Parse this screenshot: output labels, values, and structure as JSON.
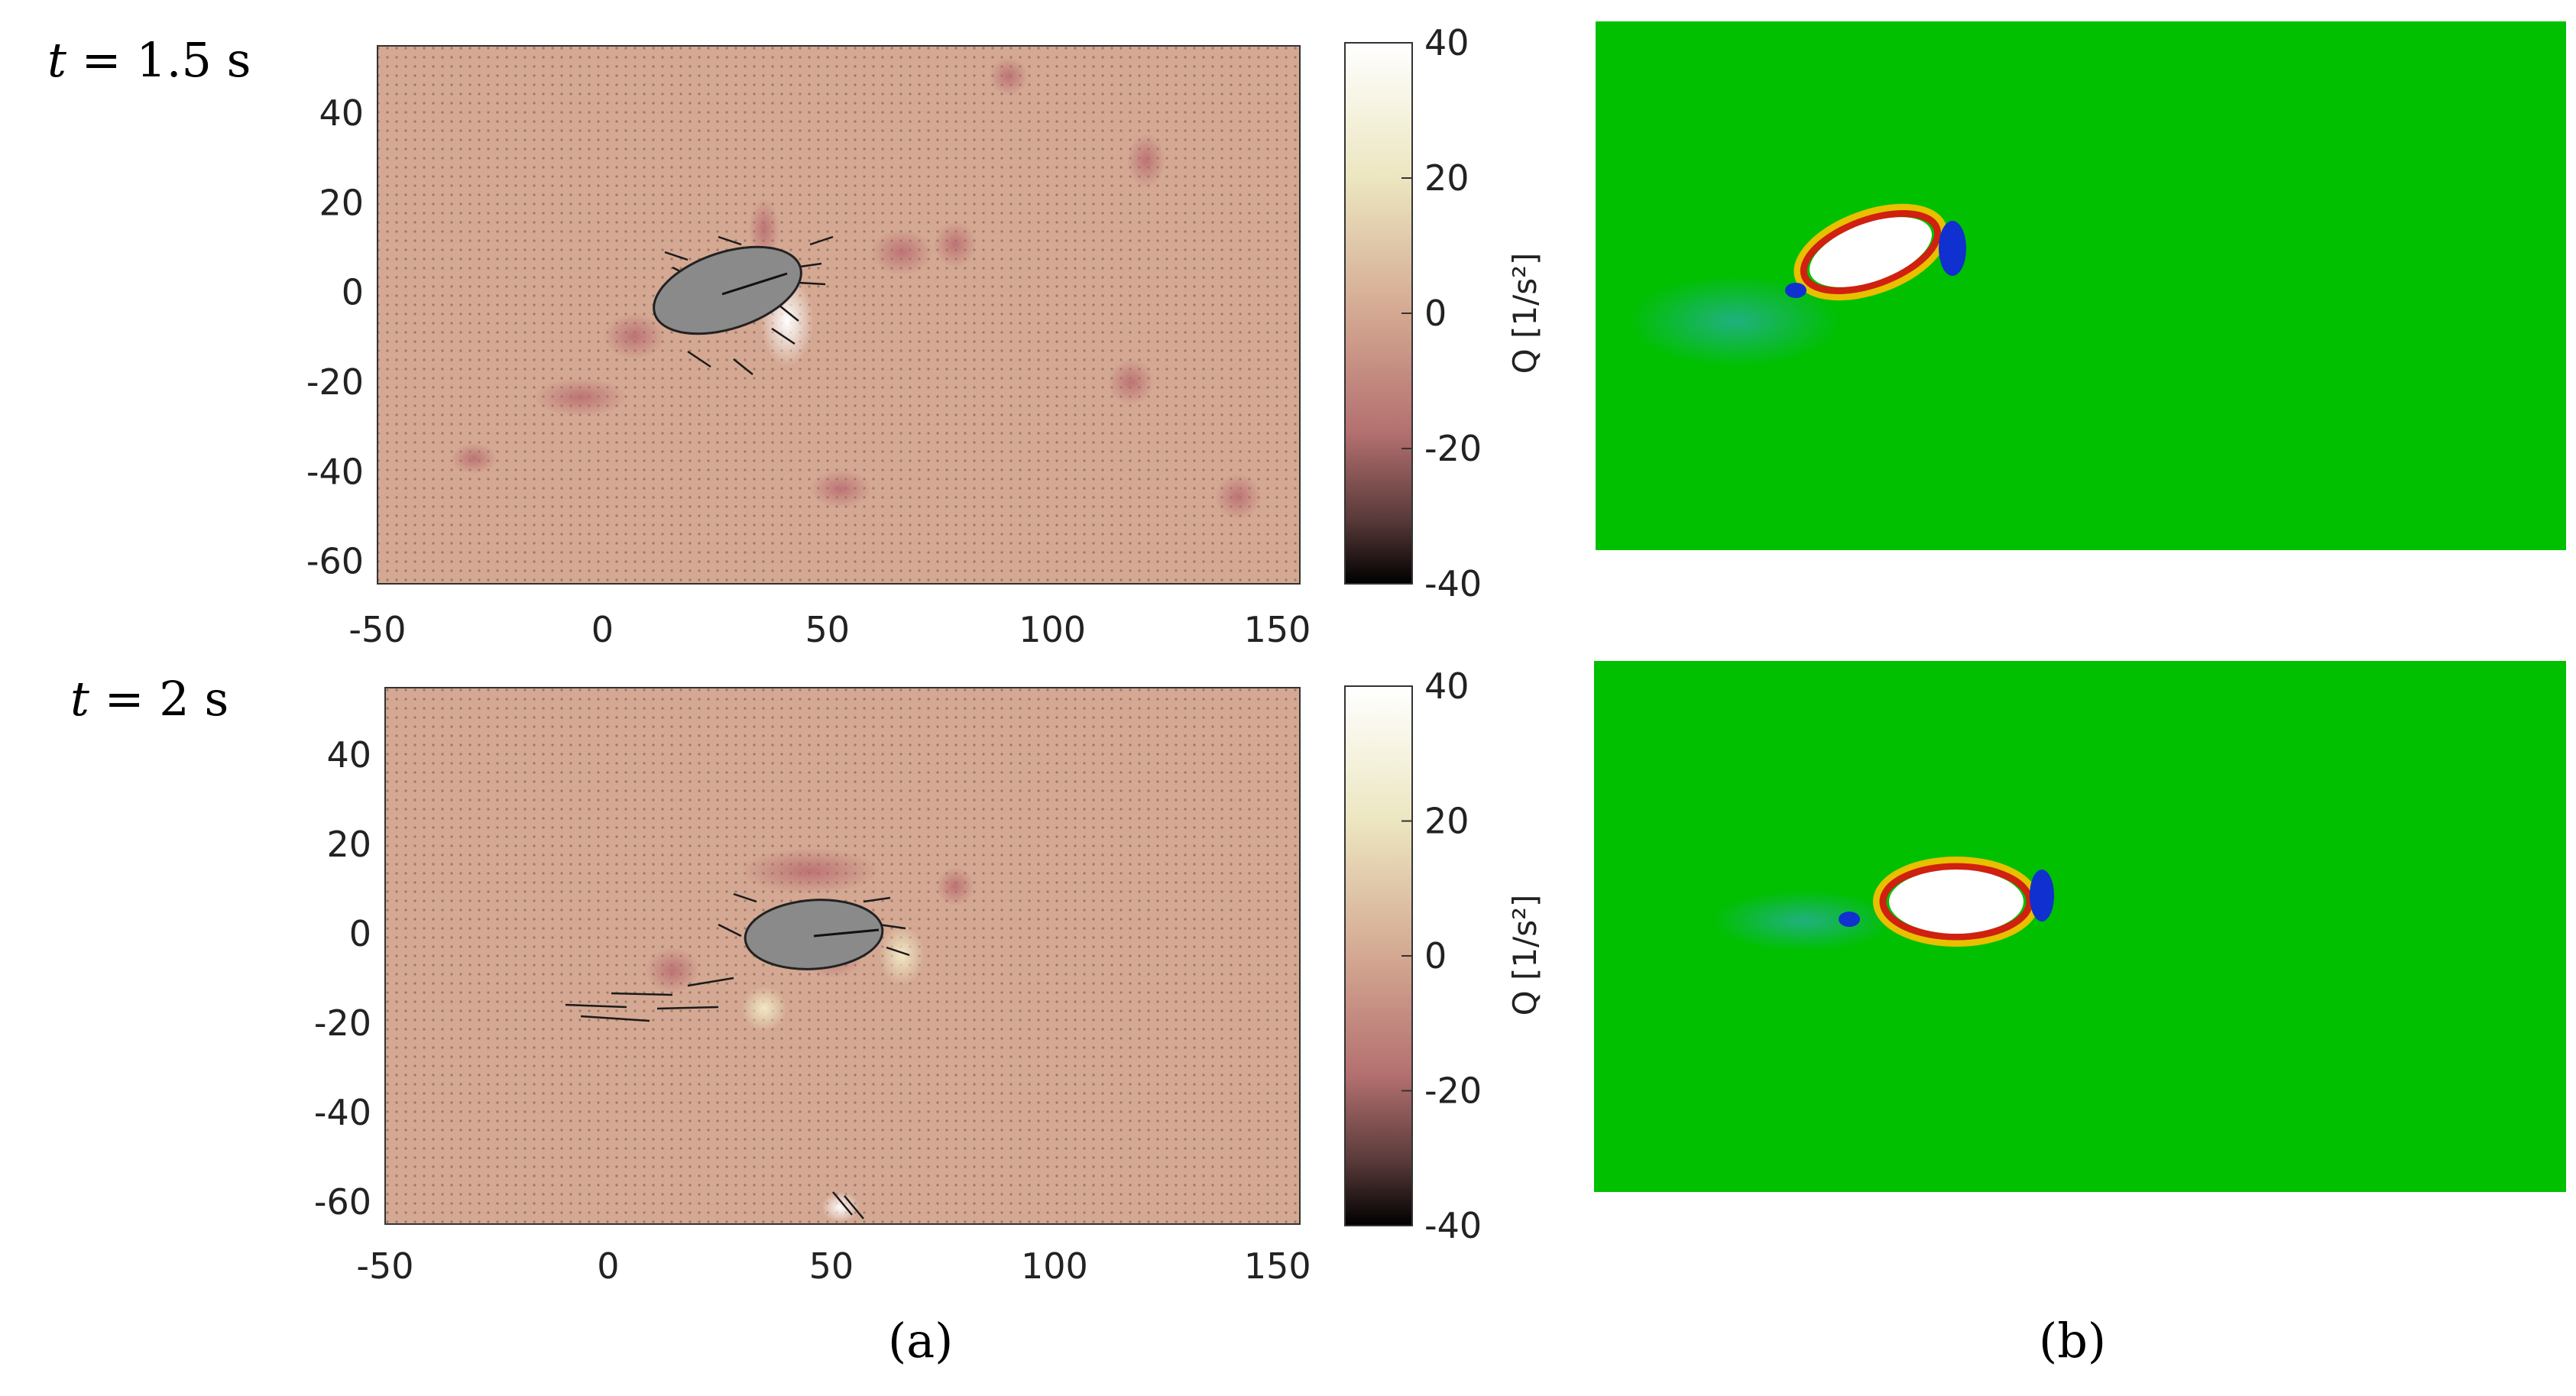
{
  "figure": {
    "rows": [
      {
        "time_var": "t",
        "time_value": "= 1.5 s"
      },
      {
        "time_var": "t",
        "time_value": "= 2 s"
      }
    ],
    "panel_a_label": "(a)",
    "panel_b_label": "(b)"
  },
  "plot": {
    "x_ticks": [
      "-50",
      "0",
      "50",
      "100",
      "150"
    ],
    "y_ticks": [
      "40",
      "20",
      "0",
      "-20",
      "-40",
      "-60"
    ],
    "x_range": [
      -50,
      155
    ],
    "y_range": [
      -65,
      55
    ]
  },
  "colorbar": {
    "label": "Q [1/s²]",
    "ticks": [
      "40",
      "20",
      "0",
      "-20",
      "-40"
    ],
    "range": [
      -40,
      40
    ]
  },
  "colors": {
    "field_background": "#d4a892",
    "sim_background": "#00c000",
    "ellipse_fill": "#8a8a8a"
  }
}
